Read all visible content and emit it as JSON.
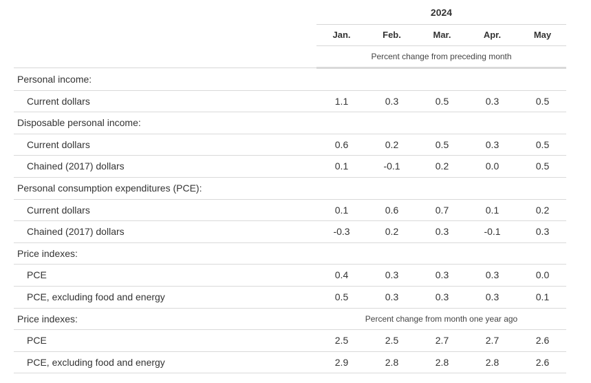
{
  "table": {
    "year": "2024",
    "columns": [
      "Jan.",
      "Feb.",
      "Mar.",
      "Apr.",
      "May"
    ],
    "subheading_monthly": "Percent change from preceding month",
    "subheading_annual": "Percent change from month one year ago",
    "rows": [
      {
        "type": "section",
        "label": "Personal income:"
      },
      {
        "type": "item",
        "label": "Current dollars",
        "values": [
          "1.1",
          "0.3",
          "0.5",
          "0.3",
          "0.5"
        ]
      },
      {
        "type": "section",
        "label": "Disposable personal income:"
      },
      {
        "type": "item",
        "label": "Current dollars",
        "values": [
          "0.6",
          "0.2",
          "0.5",
          "0.3",
          "0.5"
        ]
      },
      {
        "type": "item",
        "label": "Chained (2017) dollars",
        "values": [
          "0.1",
          "-0.1",
          "0.2",
          "0.0",
          "0.5"
        ]
      },
      {
        "type": "section",
        "label": "Personal consumption expenditures (PCE):"
      },
      {
        "type": "item",
        "label": "Current dollars",
        "values": [
          "0.1",
          "0.6",
          "0.7",
          "0.1",
          "0.2"
        ]
      },
      {
        "type": "item",
        "label": "Chained (2017) dollars",
        "values": [
          "-0.3",
          "0.2",
          "0.3",
          "-0.1",
          "0.3"
        ]
      },
      {
        "type": "section",
        "label": "Price indexes:"
      },
      {
        "type": "item",
        "label": "PCE",
        "values": [
          "0.4",
          "0.3",
          "0.3",
          "0.3",
          "0.0"
        ]
      },
      {
        "type": "item",
        "label": "PCE, excluding food and energy",
        "values": [
          "0.5",
          "0.3",
          "0.3",
          "0.3",
          "0.1"
        ]
      },
      {
        "type": "section",
        "label": "Price indexes:",
        "subheading": "annual"
      },
      {
        "type": "item",
        "label": "PCE",
        "values": [
          "2.5",
          "2.5",
          "2.7",
          "2.7",
          "2.6"
        ]
      },
      {
        "type": "item",
        "label": "PCE, excluding food and energy",
        "values": [
          "2.9",
          "2.8",
          "2.8",
          "2.8",
          "2.6"
        ]
      }
    ]
  }
}
